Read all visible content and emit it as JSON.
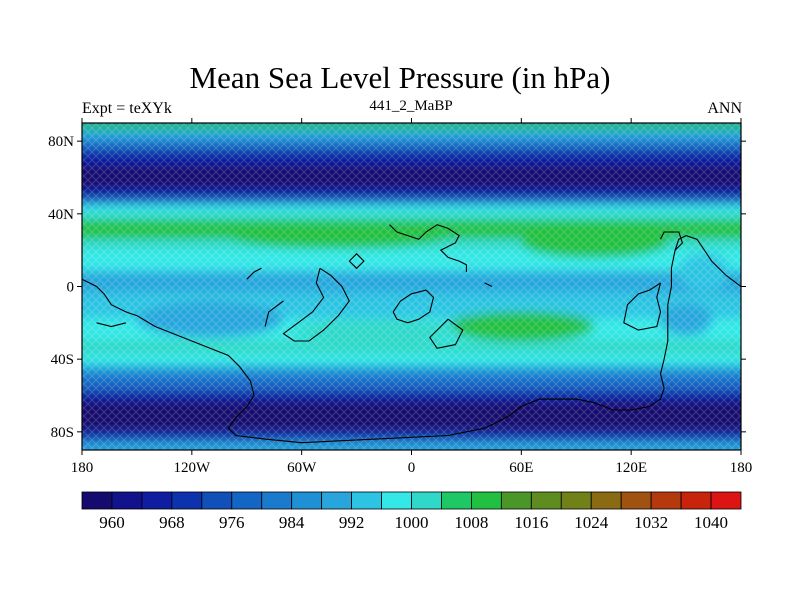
{
  "header": {
    "title": "Mean Sea Level Pressure (in hPa)",
    "left": "Expt = teXYk",
    "center": "441_2_MaBP",
    "right": "ANN"
  },
  "map": {
    "type": "contour-fill",
    "projection": "cylindrical-equidistant",
    "variable": "Mean Sea Level Pressure",
    "units": "hPa",
    "x_ticks": [
      "180",
      "120W",
      "60W",
      "0",
      "60E",
      "120E",
      "180"
    ],
    "y_ticks": [
      "80N",
      "40N",
      "0",
      "40S",
      "80S"
    ],
    "lon_range": [
      -180,
      180
    ],
    "lat_range": [
      -90,
      90
    ],
    "coastline_color": "#000000"
  },
  "colorbar": {
    "levels": [
      956,
      960,
      964,
      968,
      972,
      976,
      980,
      984,
      988,
      992,
      996,
      1000,
      1004,
      1008,
      1012,
      1016,
      1020,
      1024,
      1028,
      1032,
      1036,
      1040
    ],
    "labels": [
      "960",
      "968",
      "976",
      "984",
      "992",
      "1000",
      "1008",
      "1016",
      "1024",
      "1032",
      "1040"
    ],
    "colors": [
      "#150b6e",
      "#12128c",
      "#0f1ea0",
      "#0d32ae",
      "#1150b8",
      "#1466c4",
      "#1a7acc",
      "#1f90d4",
      "#28a6dc",
      "#2cc4e2",
      "#33e8e6",
      "#2fd8c8",
      "#1ec864",
      "#22c040",
      "#4a9628",
      "#5e8c1e",
      "#728018",
      "#8a6a12",
      "#a05210",
      "#b43a0e",
      "#c8240c",
      "#dc1414"
    ]
  }
}
